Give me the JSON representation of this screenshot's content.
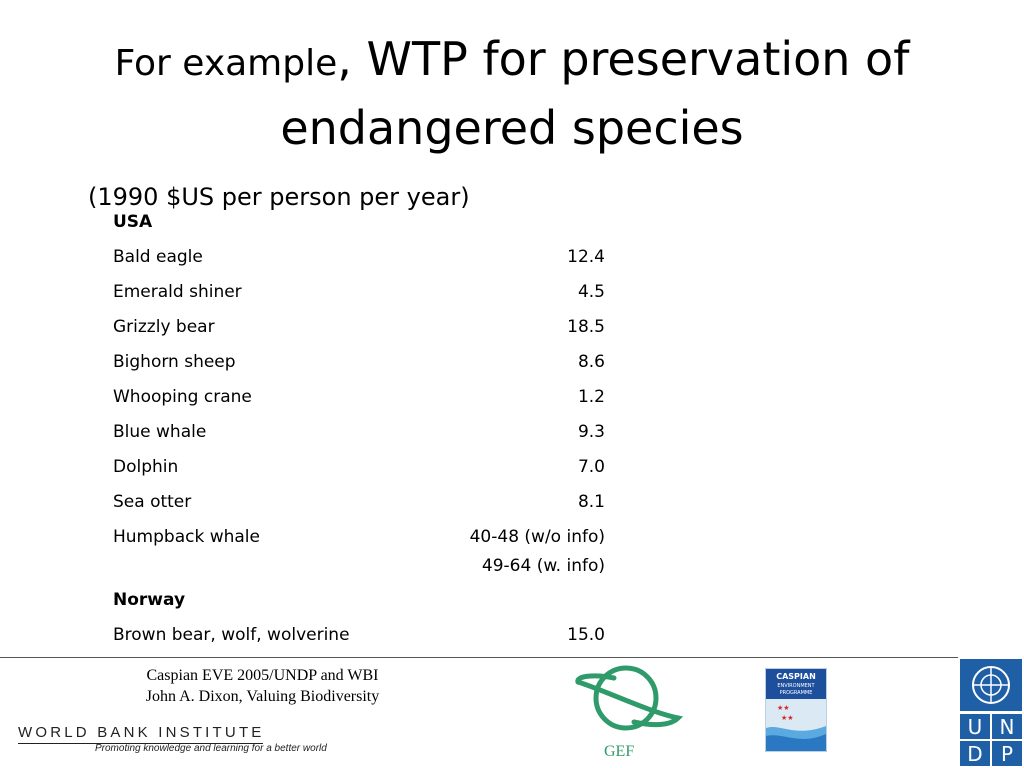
{
  "slide": {
    "title_part1": "For example",
    "title_part2": ", WTP for preservation of",
    "title_line2": "endangered species",
    "subtitle": "(1990 $US per person per year)"
  },
  "table": {
    "usa_header": "USA",
    "usa_rows": [
      {
        "species": "Bald eagle",
        "value": "12.4"
      },
      {
        "species": "Emerald shiner",
        "value": "4.5"
      },
      {
        "species": "Grizzly bear",
        "value": "18.5"
      },
      {
        "species": "Bighorn sheep",
        "value": "8.6"
      },
      {
        "species": "Whooping crane",
        "value": "1.2"
      },
      {
        "species": "Blue whale",
        "value": "9.3"
      },
      {
        "species": "Dolphin",
        "value": "7.0"
      },
      {
        "species": "Sea otter",
        "value": "8.1"
      },
      {
        "species": "Humpback whale",
        "value": "40-48 (w/o info)",
        "value2": "49-64 (w. info)"
      }
    ],
    "norway_header": "Norway",
    "norway_rows": [
      {
        "species": "Brown bear, wolf, wolverine",
        "value": "15.0"
      }
    ]
  },
  "footer": {
    "line1": "Caspian EVE 2005/UNDP and WBI",
    "line2": "John A. Dixon, Valuing Biodiversity",
    "wbi_title": "WORLD BANK INSTITUTE",
    "wbi_tagline": "Promoting knowledge and learning for a better world",
    "gef_label": "GEF",
    "caspian_line1": "CASPIAN",
    "caspian_line2": "ENVIRONMENT",
    "caspian_line3": "PROGRAMME",
    "undp_letters": [
      "U",
      "N",
      "D",
      "P"
    ]
  },
  "colors": {
    "gef_green": "#2f9a6a",
    "undp_blue": "#1f5fa6",
    "caspian_blue": "#1d4f9c"
  }
}
